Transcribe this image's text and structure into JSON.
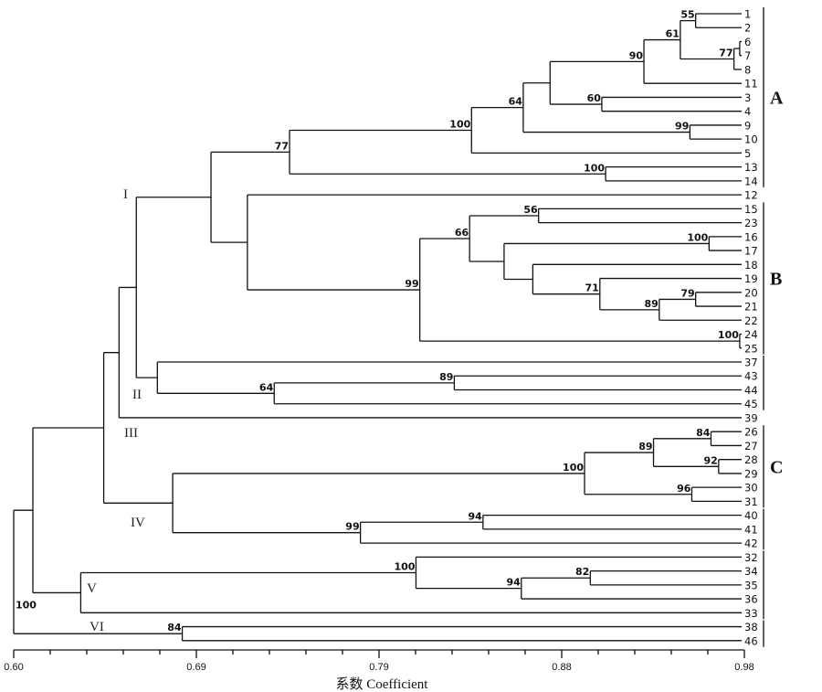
{
  "chart_data": {
    "type": "dendrogram",
    "xlabel": "系数 Coefficient",
    "xlim": [
      0.6,
      0.98
    ],
    "x_tick_labels": [
      "0.60",
      "0.69",
      "0.79",
      "0.88",
      "0.98"
    ],
    "minor_ticks_per_major": 5,
    "tree": {
      "coef": 0.6,
      "support": "100",
      "children": [
        {
          "coef": 0.61,
          "support": "",
          "children": [
            {
              "coef": 0.647,
              "support": "",
              "children": [
                {
                  "coef": 0.655,
                  "support": "",
                  "children": [
                    {
                      "coef": 0.664,
                      "support": "",
                      "children": [
                        {
                          "coef": 0.703,
                          "support": "",
                          "children": [
                            {
                              "coef": 0.744,
                              "support": "77",
                              "children": [
                                {
                                  "coef": 0.839,
                                  "support": "100",
                                  "children": [
                                    {
                                      "coef": 0.866,
                                      "support": "64",
                                      "children": [
                                        {
                                          "coef": 0.88,
                                          "support": "",
                                          "children": [
                                            {
                                              "coef": 0.929,
                                              "support": "90",
                                              "children": [
                                                {
                                                  "coef": 0.948,
                                                  "support": "61",
                                                  "children": [
                                                    {
                                                      "coef": 0.956,
                                                      "support": "55",
                                                      "children": [
                                                        "1",
                                                        "2"
                                                      ]
                                                    },
                                                    {
                                                      "coef": 0.976,
                                                      "support": "77",
                                                      "children": [
                                                        {
                                                          "coef": 0.979,
                                                          "support": "",
                                                          "children": [
                                                            "6",
                                                            "7"
                                                          ]
                                                        },
                                                        "8"
                                                      ]
                                                    }
                                                  ]
                                                },
                                                "11"
                                              ]
                                            },
                                            {
                                              "coef": 0.907,
                                              "support": "60",
                                              "children": [
                                                "3",
                                                "4"
                                              ]
                                            }
                                          ]
                                        },
                                        {
                                          "coef": 0.953,
                                          "support": "99",
                                          "children": [
                                            "9",
                                            "10"
                                          ]
                                        }
                                      ]
                                    },
                                    "5"
                                  ]
                                },
                                {
                                  "coef": 0.909,
                                  "support": "100",
                                  "children": [
                                    "13",
                                    "14"
                                  ]
                                }
                              ]
                            },
                            {
                              "coef": 0.722,
                              "support": "",
                              "children": [
                                "12",
                                {
                                  "coef": 0.812,
                                  "support": "99",
                                  "children": [
                                    {
                                      "coef": 0.838,
                                      "support": "66",
                                      "children": [
                                        {
                                          "coef": 0.874,
                                          "support": "56",
                                          "children": [
                                            "15",
                                            "23"
                                          ]
                                        },
                                        {
                                          "coef": 0.856,
                                          "support": "",
                                          "children": [
                                            {
                                              "coef": 0.963,
                                              "support": "100",
                                              "children": [
                                                "16",
                                                "17"
                                              ]
                                            },
                                            {
                                              "coef": 0.871,
                                              "support": "",
                                              "children": [
                                                "18",
                                                {
                                                  "coef": 0.906,
                                                  "support": "71",
                                                  "children": [
                                                    "19",
                                                    {
                                                      "coef": 0.937,
                                                      "support": "89",
                                                      "children": [
                                                        {
                                                          "coef": 0.956,
                                                          "support": "79",
                                                          "children": [
                                                            "20",
                                                            "21"
                                                          ]
                                                        },
                                                        "22"
                                                      ]
                                                    }
                                                  ]
                                                }
                                              ]
                                            }
                                          ]
                                        }
                                      ]
                                    },
                                    {
                                      "coef": 0.979,
                                      "support": "100",
                                      "children": [
                                        "24",
                                        "25"
                                      ]
                                    }
                                  ]
                                }
                              ]
                            }
                          ]
                        },
                        {
                          "coef": 0.675,
                          "support": "",
                          "children": [
                            "37",
                            {
                              "coef": 0.736,
                              "support": "64",
                              "children": [
                                {
                                  "coef": 0.83,
                                  "support": "89",
                                  "children": [
                                    "43",
                                    "44"
                                  ]
                                },
                                "45"
                              ]
                            }
                          ]
                        }
                      ]
                    },
                    "39"
                  ]
                },
                {
                  "coef": 0.683,
                  "support": "",
                  "children": [
                    {
                      "coef": 0.898,
                      "support": "100",
                      "children": [
                        {
                          "coef": 0.934,
                          "support": "89",
                          "children": [
                            {
                              "coef": 0.964,
                              "support": "84",
                              "children": [
                                "26",
                                "27"
                              ]
                            },
                            {
                              "coef": 0.968,
                              "support": "92",
                              "children": [
                                "28",
                                "29"
                              ]
                            }
                          ]
                        },
                        {
                          "coef": 0.954,
                          "support": "96",
                          "children": [
                            "30",
                            "31"
                          ]
                        }
                      ]
                    },
                    {
                      "coef": 0.781,
                      "support": "99",
                      "children": [
                        {
                          "coef": 0.845,
                          "support": "94",
                          "children": [
                            "40",
                            "41"
                          ]
                        },
                        "42"
                      ]
                    }
                  ]
                }
              ]
            },
            {
              "coef": 0.635,
              "support": "",
              "children": [
                {
                  "coef": 0.81,
                  "support": "100",
                  "children": [
                    "32",
                    {
                      "coef": 0.865,
                      "support": "94",
                      "children": [
                        {
                          "coef": 0.901,
                          "support": "82",
                          "children": [
                            "34",
                            "35"
                          ]
                        },
                        "36"
                      ]
                    }
                  ]
                },
                "33"
              ]
            }
          ]
        },
        {
          "coef": 0.688,
          "support": "84",
          "children": [
            "38",
            "46"
          ]
        }
      ]
    },
    "cluster_labels": [
      "I",
      "II",
      "III",
      "IV",
      "V",
      "VI"
    ],
    "groups": [
      {
        "label": "A",
        "from": "1",
        "to": "14"
      },
      {
        "label": "B",
        "from": "15",
        "to": "25"
      },
      {
        "label": "",
        "from": "37",
        "to": "45"
      },
      {
        "label": "C",
        "from": "26",
        "to": "31"
      },
      {
        "label": "",
        "from": "40",
        "to": "42"
      },
      {
        "label": "",
        "from": "32",
        "to": "33"
      },
      {
        "label": "",
        "from": "38",
        "to": "46"
      }
    ]
  }
}
